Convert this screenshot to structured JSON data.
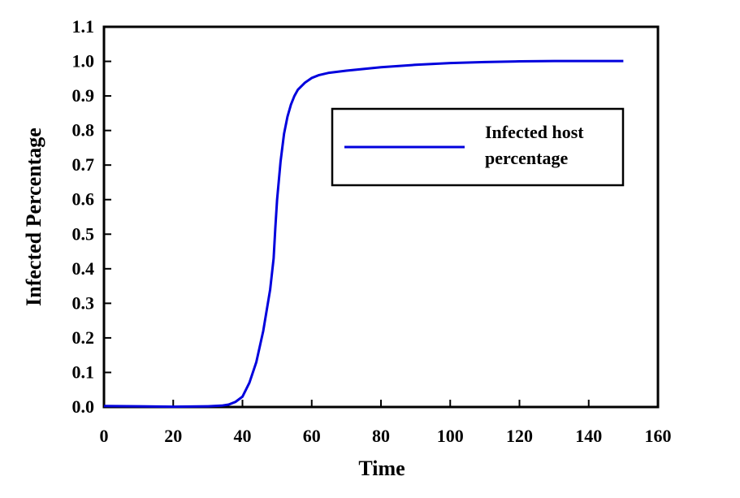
{
  "chart_data": {
    "type": "line",
    "title": "",
    "xlabel": "Time",
    "ylabel": "Infected Percentage",
    "xlim": [
      0,
      160
    ],
    "ylim": [
      0,
      1.1
    ],
    "x_ticks": [
      "0",
      "20",
      "40",
      "60",
      "80",
      "100",
      "120",
      "140",
      "160"
    ],
    "y_ticks": [
      "0.0",
      "0.1",
      "0.2",
      "0.3",
      "0.4",
      "0.5",
      "0.6",
      "0.7",
      "0.8",
      "0.9",
      "1.0",
      "1.1"
    ],
    "grid": false,
    "legend_position": "top-right",
    "series": [
      {
        "name": "Infected host percentage",
        "color": "#0000dd",
        "x": [
          0,
          10,
          20,
          30,
          34,
          36,
          38,
          40,
          42,
          44,
          46,
          48,
          49,
          49.5,
          50,
          51,
          52,
          53,
          54,
          55,
          56,
          58,
          60,
          62,
          65,
          70,
          80,
          90,
          100,
          110,
          120,
          130,
          140,
          150
        ],
        "y": [
          0.003,
          0.002,
          0.001,
          0.002,
          0.004,
          0.007,
          0.015,
          0.03,
          0.07,
          0.13,
          0.22,
          0.34,
          0.43,
          0.52,
          0.6,
          0.71,
          0.79,
          0.84,
          0.875,
          0.9,
          0.918,
          0.938,
          0.952,
          0.96,
          0.967,
          0.973,
          0.983,
          0.99,
          0.995,
          0.998,
          1.0,
          1.001,
          1.001,
          1.001
        ]
      }
    ]
  }
}
